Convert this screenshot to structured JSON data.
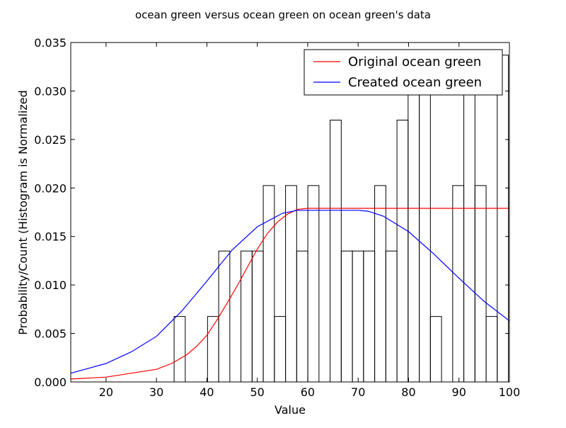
{
  "chart_data": {
    "type": "bar",
    "title": "ocean green versus ocean green on ocean green's data",
    "xlabel": "Value",
    "ylabel": "Probability/Count (Histogram is Normalized",
    "xlim": [
      13,
      100
    ],
    "ylim": [
      0,
      0.035
    ],
    "xticks": [
      20,
      30,
      40,
      50,
      60,
      70,
      80,
      90,
      100
    ],
    "yticks": [
      0.0,
      0.005,
      0.01,
      0.015,
      0.02,
      0.025,
      0.03,
      0.035
    ],
    "ytick_labels": [
      "0.000",
      "0.005",
      "0.010",
      "0.015",
      "0.020",
      "0.025",
      "0.030",
      "0.035"
    ],
    "grid": false,
    "legend_position": "top-right",
    "histogram": {
      "bin_start": 33.5,
      "bin_width": 2.21,
      "counts": [
        0.00675,
        0,
        0,
        0.00675,
        0.0135,
        0,
        0.0135,
        0.0135,
        0.02025,
        0.00675,
        0.02025,
        0.0135,
        0.02025,
        0,
        0.027,
        0.0135,
        0.0135,
        0.0135,
        0.02025,
        0.0135,
        0.027,
        0.0337,
        0.0337,
        0.00675,
        0,
        0.02025,
        0.0337,
        0.02025,
        0.00675,
        0.0337
      ]
    },
    "series": [
      {
        "name": "Original ocean green",
        "color": "#ff0000",
        "x": [
          13,
          20,
          25,
          30,
          33,
          36,
          38,
          40,
          42,
          44,
          46,
          48,
          50,
          52,
          54,
          56,
          58,
          60,
          65,
          70,
          80,
          90,
          100
        ],
        "y": [
          0.0003,
          0.0005,
          0.0009,
          0.0013,
          0.0019,
          0.0028,
          0.0037,
          0.0048,
          0.0064,
          0.0081,
          0.0099,
          0.0118,
          0.0137,
          0.0153,
          0.0165,
          0.0173,
          0.0178,
          0.0179,
          0.0179,
          0.0179,
          0.0179,
          0.0179,
          0.0179
        ]
      },
      {
        "name": "Created ocean green",
        "color": "#0000ff",
        "x": [
          13,
          20,
          25,
          30,
          35,
          40,
          45,
          50,
          55,
          58,
          60,
          65,
          70,
          72,
          75,
          80,
          85,
          90,
          95,
          100
        ],
        "y": [
          0.0009,
          0.0019,
          0.0031,
          0.0047,
          0.0073,
          0.0104,
          0.0136,
          0.016,
          0.0174,
          0.0177,
          0.0177,
          0.0177,
          0.0177,
          0.0176,
          0.0171,
          0.0155,
          0.0132,
          0.0107,
          0.0083,
          0.0063
        ]
      }
    ]
  }
}
